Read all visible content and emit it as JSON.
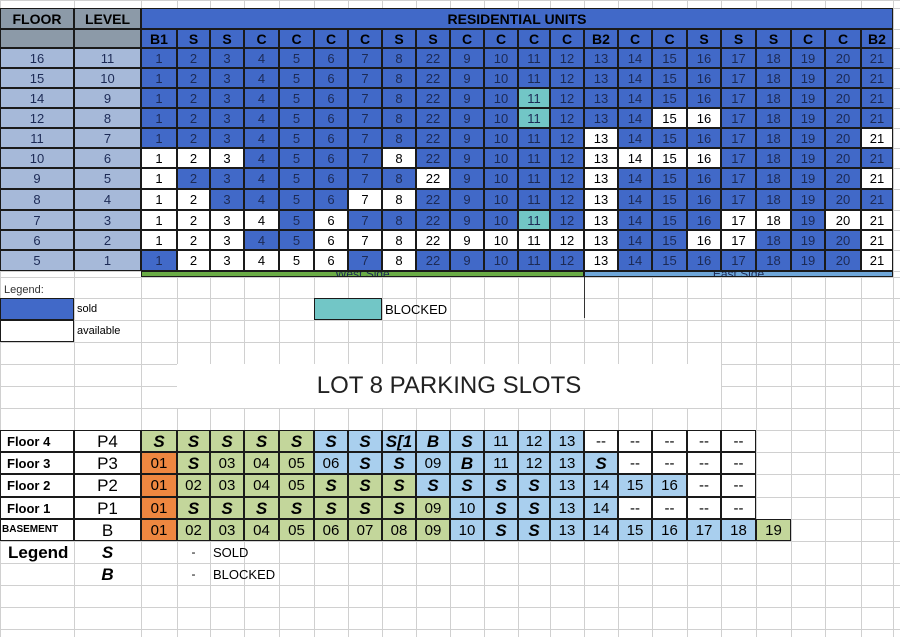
{
  "headers": {
    "floor": "FLOOR",
    "level": "LEVEL",
    "units_title": "RESIDENTIAL UNITS"
  },
  "unit_types": [
    "B1",
    "S",
    "S",
    "C",
    "C",
    "C",
    "C",
    "S",
    "S",
    "C",
    "C",
    "C",
    "C",
    "B2",
    "C",
    "C",
    "S",
    "S",
    "S",
    "C",
    "C",
    "B2"
  ],
  "unit_numbers": [
    "1",
    "2",
    "3",
    "4",
    "5",
    "6",
    "7",
    "8",
    "22",
    "9",
    "10",
    "11",
    "12",
    "13",
    "14",
    "15",
    "16",
    "17",
    "18",
    "19",
    "20",
    "21"
  ],
  "rows": [
    {
      "floor": "16",
      "level": "11",
      "status": "SSSSSSSSSSSSSSSSSSSSSS"
    },
    {
      "floor": "15",
      "level": "10",
      "status": "SSSSSSSSSSSSSSSSSSSSSS"
    },
    {
      "floor": "14",
      "level": "9",
      "status": "SSSSSSSSSSSBSSSSSSSSSS"
    },
    {
      "floor": "12",
      "level": "8",
      "status": "SSSSSSSSSSSBSSSAASSSSS"
    },
    {
      "floor": "11",
      "level": "7",
      "status": "SSSSSSSSSSSSSASSSSSSSA"
    },
    {
      "floor": "10",
      "level": "6",
      "status": "AAASSSSASSSSSAAAASSSSS"
    },
    {
      "floor": "9",
      "level": "5",
      "status": "ASSSSSSSASSSSASSSSSSSA"
    },
    {
      "floor": "8",
      "level": "4",
      "status": "AASSSSAASSSSSASSSSSSSS"
    },
    {
      "floor": "7",
      "level": "3",
      "status": "AAAASASSSSSBSASSSAASAA"
    },
    {
      "floor": "6",
      "level": "2",
      "status": "AAASSAAAAAAAAASSAASSSA"
    },
    {
      "floor": "5",
      "level": "1",
      "status": "SAAAAASASSSSSASSSSSSSA"
    }
  ],
  "sides": {
    "west": "West Side",
    "east": "East Side"
  },
  "legend": {
    "title": "Legend:",
    "sold": "sold",
    "available": "available",
    "blocked": "BLOCKED"
  },
  "colors": {
    "sold": "#4169c8",
    "available": "#ffffff",
    "blocked": "#72c6c6",
    "west_bar": "#6aac46",
    "east_bar": "#6fa7d9"
  },
  "parking": {
    "title": "LOT 8 PARKING SLOTS",
    "rows": [
      {
        "name": "Floor 4",
        "code": "P4",
        "slots": [
          "S",
          "S",
          "S",
          "S",
          "S",
          "S",
          "S",
          "S[1",
          "B",
          "S",
          "11",
          "12",
          "13",
          "--",
          "--",
          "--",
          "--",
          "--"
        ],
        "colors": "gggggbbbbbbbbwwwww"
      },
      {
        "name": "Floor 3",
        "code": "P3",
        "slots": [
          "01",
          "S",
          "03",
          "04",
          "05",
          "06",
          "S",
          "S",
          "09",
          "B",
          "11",
          "12",
          "13",
          "S",
          "--",
          "--",
          "--",
          "--"
        ],
        "colors": "oggggbbbbbbbbbwwww"
      },
      {
        "name": "Floor 2",
        "code": "P2",
        "slots": [
          "01",
          "02",
          "03",
          "04",
          "05",
          "S",
          "S",
          "S",
          "S",
          "S",
          "S",
          "S",
          "13",
          "14",
          "15",
          "16",
          "--",
          "--"
        ],
        "colors": "ogggggggbbbbbbbbww"
      },
      {
        "name": "Floor 1",
        "code": "P1",
        "slots": [
          "01",
          "S",
          "S",
          "S",
          "S",
          "S",
          "S",
          "S",
          "09",
          "10",
          "S",
          "S",
          "13",
          "14",
          "--",
          "--",
          "--",
          "--"
        ],
        "colors": "oggggggggbbbbbwwww"
      },
      {
        "name": "BASEMENT",
        "code": "B",
        "slots": [
          "01",
          "02",
          "03",
          "04",
          "05",
          "06",
          "07",
          "08",
          "09",
          "10",
          "S",
          "S",
          "13",
          "14",
          "15",
          "16",
          "17",
          "18",
          "19"
        ],
        "colors": "oggggggggbbbbbbbbbg"
      }
    ],
    "legend": {
      "title": "Legend",
      "sold_symbol": "S",
      "blocked_symbol": "B",
      "dash": "-",
      "sold": "SOLD",
      "blocked": "BLOCKED"
    },
    "colors": {
      "sold_green": "#c3d69b",
      "blue": "#a9cfee",
      "orange": "#ee8740"
    }
  }
}
